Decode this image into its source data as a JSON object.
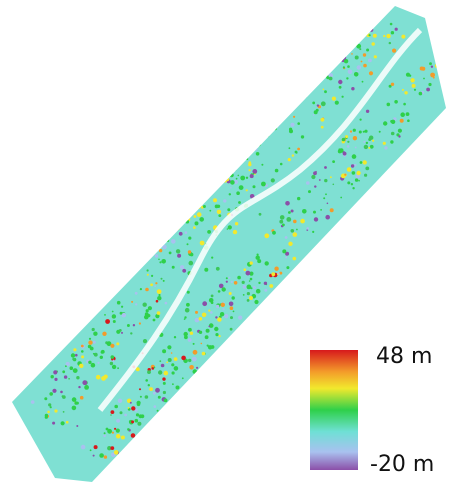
{
  "colorbar": {
    "max_label": "48 m",
    "min_label": "-20 m"
  }
}
